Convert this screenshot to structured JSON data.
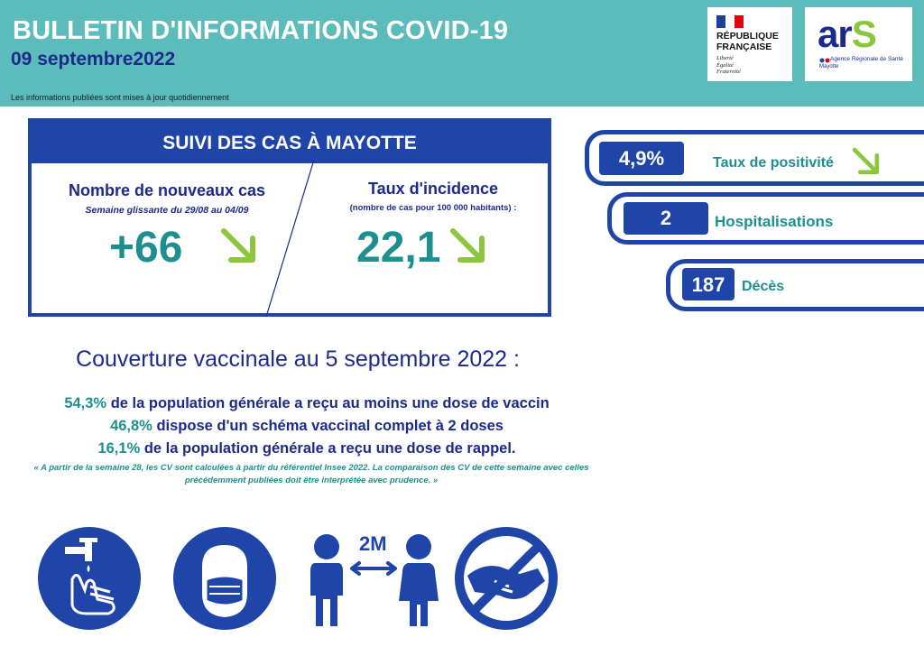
{
  "header": {
    "title": "BULLETIN D'INFORMATIONS COVID-19",
    "date": "09 septembre2022",
    "note": "Les informations publiées sont mises à jour quotidiennement",
    "colors": {
      "band": "#5cbcbc",
      "navy": "#1b2a8c",
      "blue": "#1f45a8",
      "teal": "#1d8f8f",
      "green": "#8cc63f"
    }
  },
  "logos": {
    "republique": {
      "name_line1": "RÉPUBLIQUE",
      "name_line2": "FRANÇAISE",
      "motto1": "Liberté",
      "motto2": "Égalité",
      "motto3": "Fraternité"
    },
    "ars": {
      "word_a": "ar",
      "word_s": "S",
      "subtitle": "Agence Régionale de Santé",
      "region": "Mayotte"
    }
  },
  "suivi": {
    "heading": "SUIVI DES CAS À MAYOTTE",
    "new_cases": {
      "label": "Nombre de nouveaux cas",
      "period": "Semaine glissante du 29/08 au 04/09",
      "value": "+66",
      "trend": "down-arrow-icon"
    },
    "incidence": {
      "label": "Taux d'incidence",
      "unit": "(nombre de cas pour 100 000 habitants) :",
      "value": "22,1",
      "trend": "down-arrow-icon"
    }
  },
  "indicators": [
    {
      "value": "4,9%",
      "label": "Taux de positivité",
      "trend": "down-arrow-icon"
    },
    {
      "value": "2",
      "label": "Hospitalisations"
    },
    {
      "value": "187",
      "label": "Décès"
    }
  ],
  "vaccination": {
    "title": "Couverture vaccinale au 5 septembre 2022 :",
    "lines": [
      {
        "pct": "54,3%",
        "text": " de la population générale a reçu au moins une dose de vaccin"
      },
      {
        "pct": "46,8%",
        "text": " dispose d'un schéma vaccinal complet à 2 doses"
      },
      {
        "pct": "16,1%",
        "text": " de la population générale a reçu une dose de rappel."
      }
    ],
    "note": "« A partir de la semaine 28, les CV sont calculées à partir du référentiel Insee 2022. La comparaison des CV de cette semaine avec celles précédemment publiées doit être interprétée avec prudence. »"
  },
  "gestures": {
    "icons": [
      "hand-washing-icon",
      "face-mask-icon",
      "distance-icon",
      "no-handshake-icon"
    ],
    "distance_label": "2M"
  }
}
